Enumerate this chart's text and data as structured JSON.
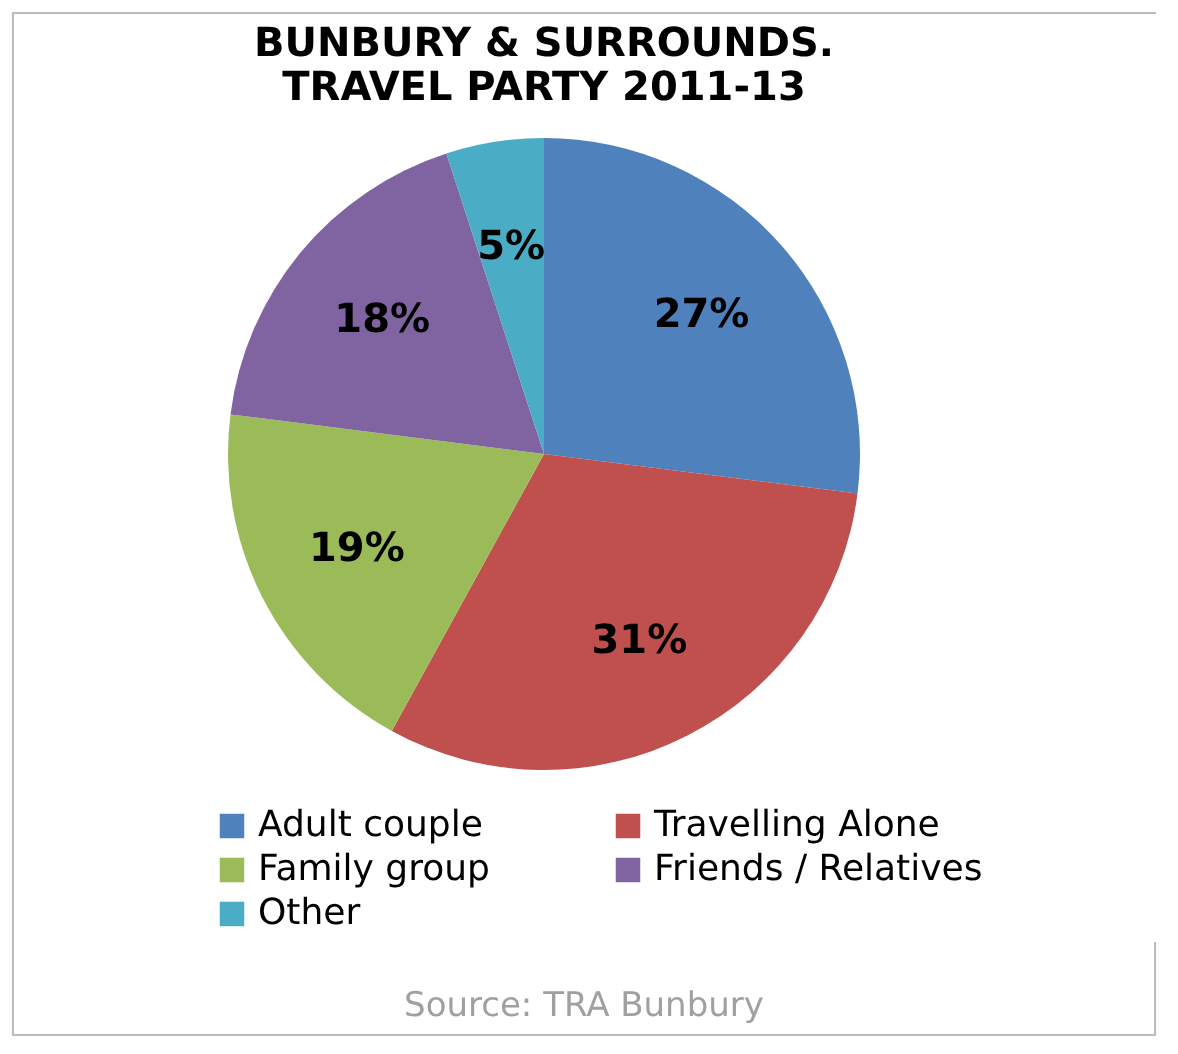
{
  "chart_data": {
    "type": "pie",
    "title": "BUNBURY & SURROUNDS.\nTRAVEL PARTY 2011-13",
    "categories": [
      "Adult couple",
      "Travelling Alone",
      "Family group",
      "Friends / Relatives",
      "Other"
    ],
    "values": [
      27,
      31,
      19,
      18,
      5
    ],
    "colors": [
      "#4f81bd",
      "#c0504d",
      "#9bbb59",
      "#8064a2",
      "#4bacc6"
    ],
    "value_labels": [
      "27%",
      "31%",
      "19%",
      "18%",
      "5%"
    ],
    "legend": "bottom",
    "annotations": [
      "Source:  TRA Bunbury"
    ]
  }
}
